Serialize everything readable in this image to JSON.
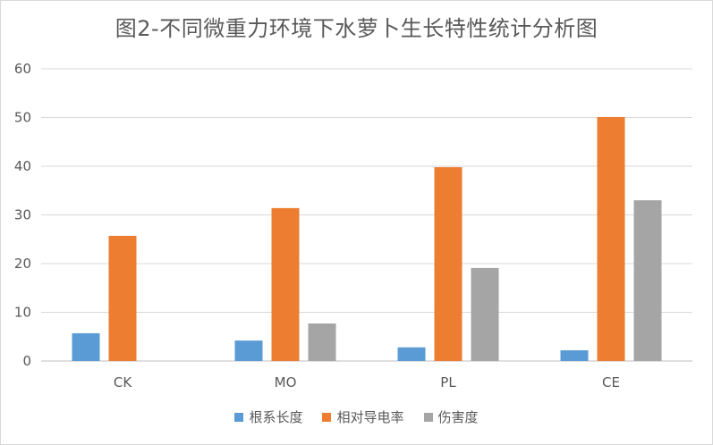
{
  "chart_data": {
    "type": "bar",
    "title": "图2-不同微重力环境下水萝卜生长特性统计分析图",
    "categories": [
      "CK",
      "MO",
      "PL",
      "CE"
    ],
    "series": [
      {
        "name": "根系长度",
        "color": "#5b9bd5",
        "values": [
          5.7,
          4.2,
          2.8,
          2.2
        ]
      },
      {
        "name": "相对导电率",
        "color": "#ed7d31",
        "values": [
          25.7,
          31.4,
          39.8,
          50.1
        ]
      },
      {
        "name": "伤害度",
        "color": "#a5a5a5",
        "values": [
          0,
          7.7,
          19.1,
          33.0
        ]
      }
    ],
    "ylim": [
      0,
      60
    ],
    "yticks": [
      0,
      10,
      20,
      30,
      40,
      50,
      60
    ],
    "grid": true,
    "legend_position": "bottom"
  }
}
